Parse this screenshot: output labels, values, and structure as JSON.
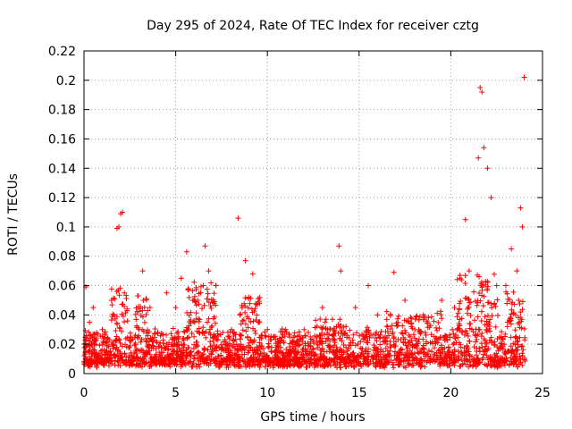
{
  "chart_data": {
    "type": "scatter",
    "title": "Day 295 of 2024, Rate Of TEC Index for receiver cztg",
    "xlabel": "GPS time / hours",
    "ylabel": "ROTI / TECUs",
    "xlim": [
      0,
      25
    ],
    "ylim": [
      0,
      0.22
    ],
    "xticks": [
      0,
      5,
      10,
      15,
      20,
      25
    ],
    "yticks": [
      0,
      0.02,
      0.04,
      0.06,
      0.08,
      0.1,
      0.12,
      0.14,
      0.16,
      0.18,
      0.2,
      0.22
    ],
    "xtick_labels": [
      "0",
      "5",
      "10",
      "15",
      "20",
      "25"
    ],
    "ytick_labels": [
      "0",
      "0.02",
      "0.04",
      "0.06",
      "0.08",
      "0.1",
      "0.12",
      "0.14",
      "0.16",
      "0.18",
      "0.2",
      "0.22"
    ],
    "grid": true,
    "marker": "+",
    "color": "#ff0000",
    "series": [
      {
        "name": "ROTI",
        "points_note": "dense cloud mostly 0.005-0.04 TECU/min across 0-24 h; selected highlighted points listed",
        "x": [
          0.0,
          0.1,
          0.3,
          0.5,
          1.0,
          1.5,
          1.8,
          1.9,
          2.0,
          2.1,
          2.2,
          3.0,
          3.2,
          3.6,
          4.5,
          5.0,
          5.3,
          5.6,
          6.2,
          6.5,
          6.6,
          6.8,
          7.2,
          8.4,
          8.5,
          8.8,
          9.2,
          9.5,
          10.0,
          11.0,
          12.0,
          13.0,
          13.9,
          14.0,
          14.8,
          15.5,
          16.0,
          16.9,
          17.5,
          18.5,
          19.5,
          20.2,
          20.5,
          20.8,
          21.0,
          21.5,
          21.6,
          21.7,
          21.8,
          22.0,
          22.2,
          22.5,
          23.0,
          23.3,
          23.6,
          23.8,
          23.9,
          24.0
        ],
        "y": [
          0.02,
          0.059,
          0.035,
          0.045,
          0.03,
          0.05,
          0.099,
          0.1,
          0.109,
          0.11,
          0.055,
          0.03,
          0.07,
          0.045,
          0.055,
          0.045,
          0.065,
          0.083,
          0.05,
          0.06,
          0.087,
          0.07,
          0.06,
          0.106,
          0.04,
          0.077,
          0.068,
          0.035,
          0.03,
          0.03,
          0.03,
          0.045,
          0.087,
          0.07,
          0.045,
          0.06,
          0.04,
          0.069,
          0.05,
          0.04,
          0.05,
          0.045,
          0.065,
          0.105,
          0.07,
          0.147,
          0.195,
          0.192,
          0.154,
          0.14,
          0.12,
          0.06,
          0.06,
          0.085,
          0.07,
          0.113,
          0.1,
          0.202
        ]
      }
    ]
  }
}
